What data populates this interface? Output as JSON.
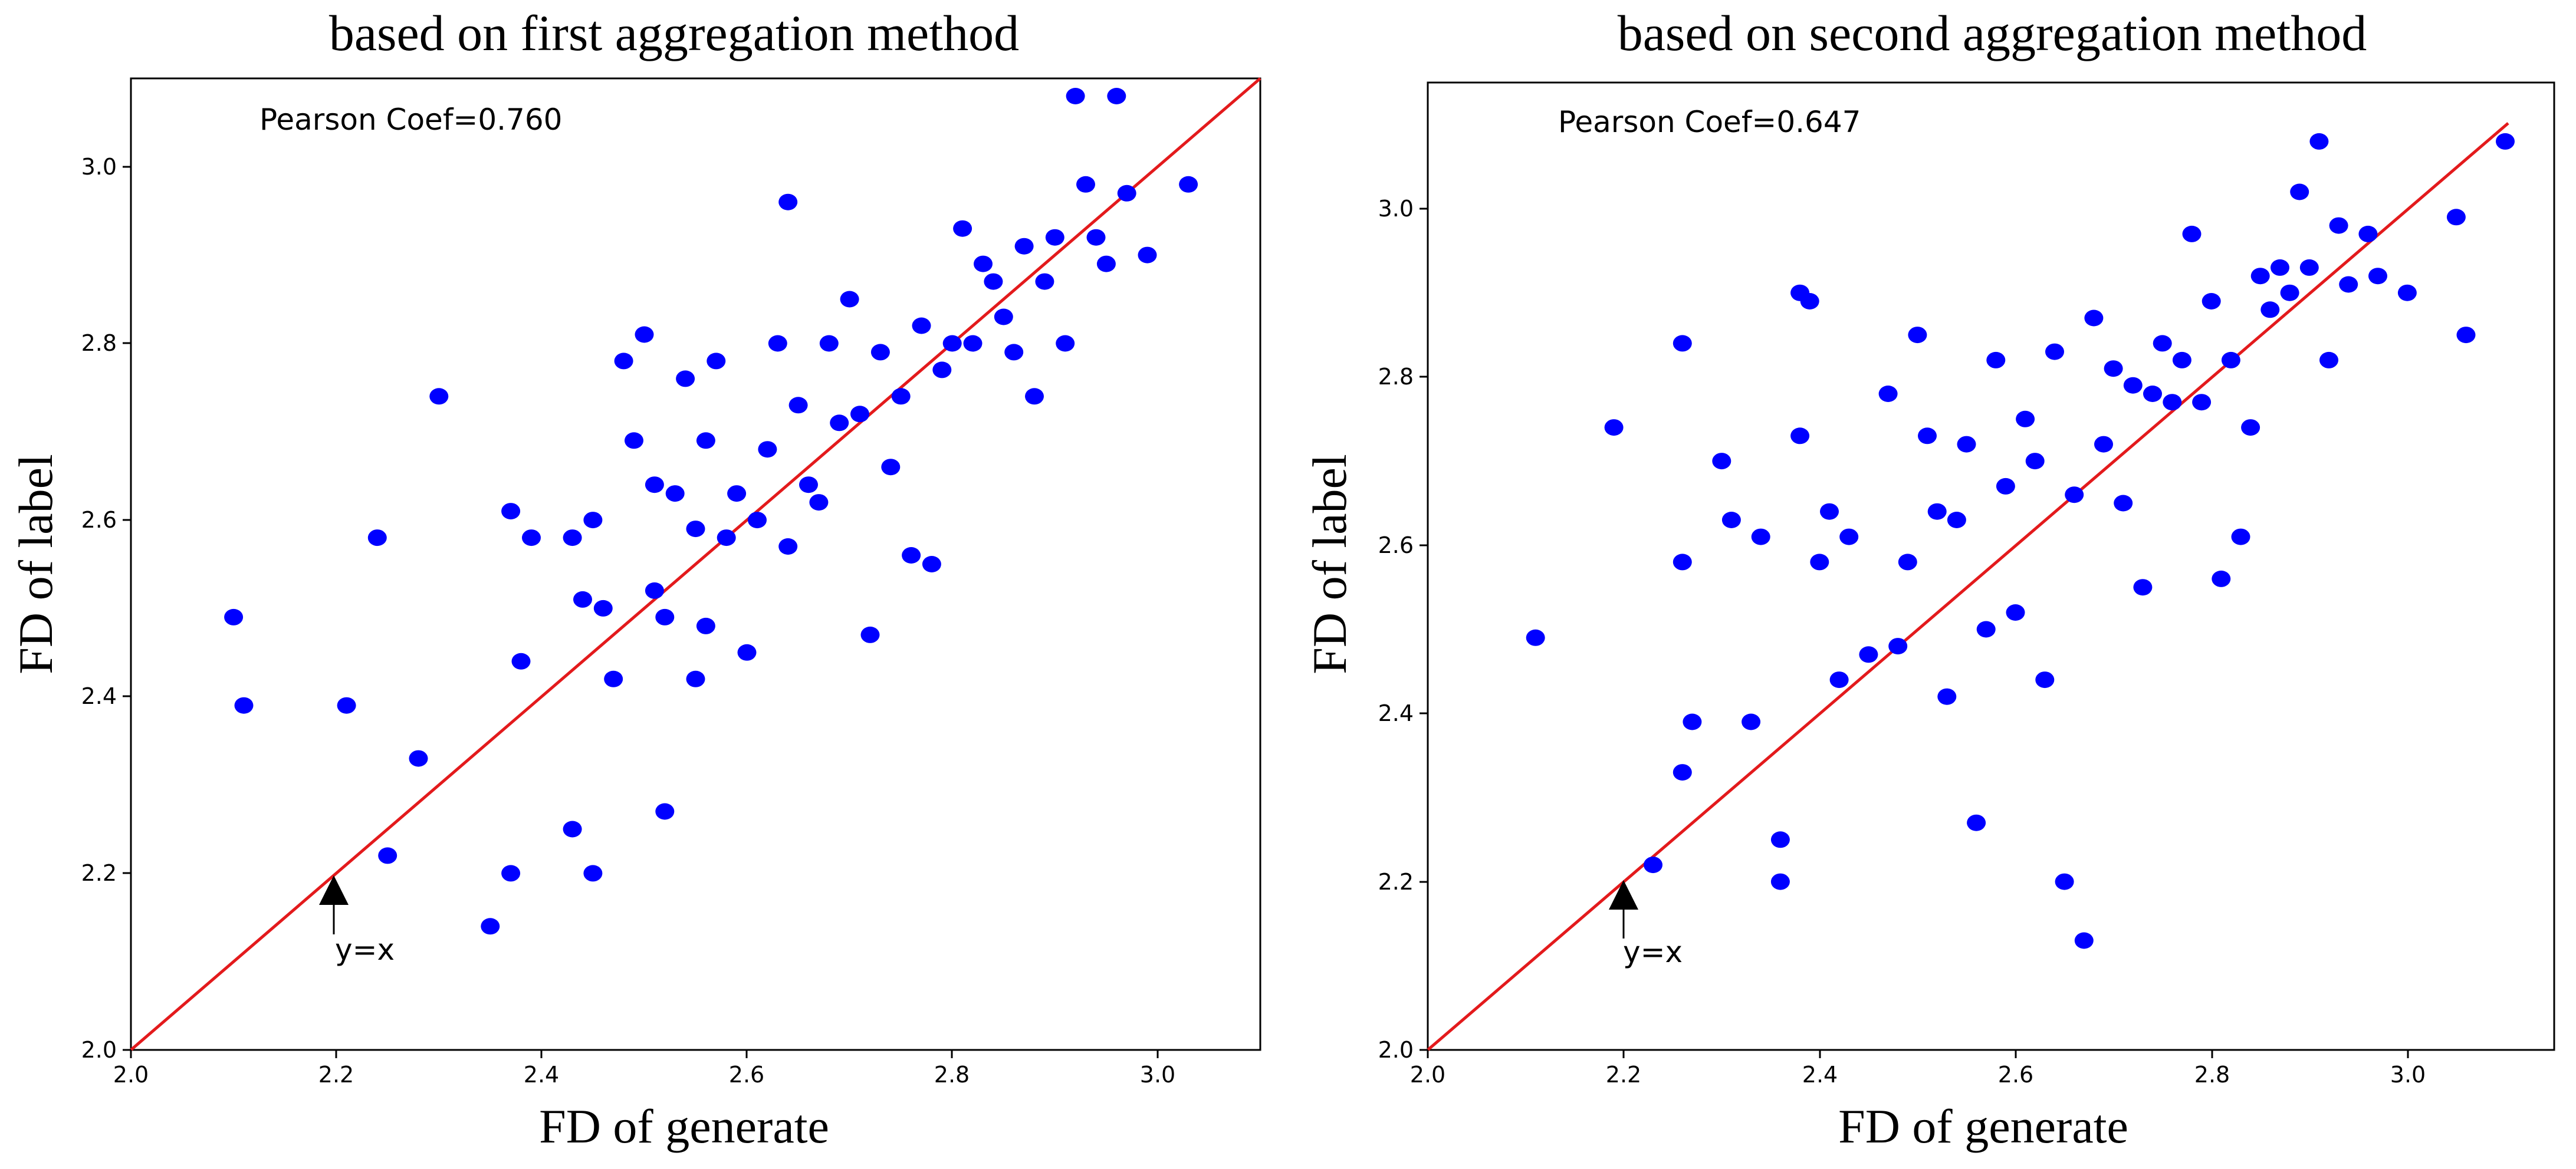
{
  "chart_data": [
    {
      "type": "scatter",
      "title": "based on first aggregation method",
      "xlabel": "FD of generate",
      "ylabel": "FD of label",
      "xlim": [
        2.0,
        3.1
      ],
      "ylim": [
        2.0,
        3.1
      ],
      "xticks": [
        "2.0",
        "2.2",
        "2.4",
        "2.6",
        "2.8",
        "3.0"
      ],
      "yticks": [
        "2.0",
        "2.2",
        "2.4",
        "2.6",
        "2.8",
        "3.0"
      ],
      "grid": false,
      "point_color": "#0000ff",
      "reference_line": {
        "label": "y=x",
        "color": "#e31a1c"
      },
      "annotation": "Pearson Coef=0.760",
      "arrow_label": "y=x",
      "arrow_point": [
        2.2,
        2.19
      ],
      "x": [
        2.1,
        2.11,
        2.21,
        2.24,
        2.25,
        2.28,
        2.3,
        2.35,
        2.37,
        2.37,
        2.38,
        2.39,
        2.43,
        2.43,
        2.44,
        2.45,
        2.45,
        2.46,
        2.47,
        2.48,
        2.49,
        2.5,
        2.51,
        2.51,
        2.52,
        2.52,
        2.53,
        2.54,
        2.55,
        2.55,
        2.56,
        2.56,
        2.57,
        2.58,
        2.59,
        2.6,
        2.61,
        2.62,
        2.63,
        2.64,
        2.64,
        2.65,
        2.66,
        2.67,
        2.68,
        2.69,
        2.7,
        2.71,
        2.72,
        2.73,
        2.74,
        2.75,
        2.76,
        2.77,
        2.78,
        2.79,
        2.8,
        2.81,
        2.82,
        2.83,
        2.84,
        2.85,
        2.86,
        2.87,
        2.88,
        2.89,
        2.9,
        2.91,
        2.92,
        2.93,
        2.94,
        2.95,
        2.96,
        2.97,
        2.99,
        3.03
      ],
      "y": [
        2.49,
        2.39,
        2.39,
        2.58,
        2.22,
        2.33,
        2.74,
        2.14,
        2.2,
        2.61,
        2.44,
        2.58,
        2.25,
        2.58,
        2.51,
        2.2,
        2.6,
        2.5,
        2.42,
        2.78,
        2.69,
        2.81,
        2.52,
        2.64,
        2.49,
        2.27,
        2.63,
        2.76,
        2.59,
        2.42,
        2.48,
        2.69,
        2.78,
        2.58,
        2.63,
        2.45,
        2.6,
        2.68,
        2.8,
        2.57,
        2.96,
        2.73,
        2.64,
        2.62,
        2.8,
        2.71,
        2.85,
        2.72,
        2.47,
        2.79,
        2.66,
        2.74,
        2.56,
        2.82,
        2.55,
        2.77,
        2.8,
        2.93,
        2.8,
        2.89,
        2.87,
        2.83,
        2.79,
        2.91,
        2.74,
        2.87,
        2.92,
        2.8,
        3.08,
        2.98,
        2.92,
        2.89,
        3.08,
        2.97,
        2.9,
        2.98
      ]
    },
    {
      "type": "scatter",
      "title": "based on second aggregation method",
      "xlabel": "FD of generate",
      "ylabel": "FD of label",
      "xlim": [
        2.0,
        3.15
      ],
      "ylim": [
        2.0,
        3.15
      ],
      "xticks": [
        "2.0",
        "2.2",
        "2.4",
        "2.6",
        "2.8",
        "3.0"
      ],
      "yticks": [
        "2.0",
        "2.2",
        "2.4",
        "2.6",
        "2.8",
        "3.0"
      ],
      "grid": false,
      "point_color": "#0000ff",
      "reference_line": {
        "label": "y=x",
        "color": "#e31a1c"
      },
      "annotation": "Pearson Coef=0.647",
      "arrow_label": "y=x",
      "arrow_point": [
        2.2,
        2.18
      ],
      "x": [
        2.11,
        2.19,
        2.23,
        2.26,
        2.26,
        2.26,
        2.27,
        2.3,
        2.31,
        2.33,
        2.34,
        2.36,
        2.36,
        2.38,
        2.38,
        2.39,
        2.4,
        2.41,
        2.42,
        2.43,
        2.45,
        2.47,
        2.48,
        2.49,
        2.5,
        2.51,
        2.52,
        2.53,
        2.54,
        2.55,
        2.56,
        2.57,
        2.58,
        2.59,
        2.6,
        2.61,
        2.62,
        2.63,
        2.64,
        2.65,
        2.66,
        2.67,
        2.68,
        2.69,
        2.7,
        2.71,
        2.72,
        2.73,
        2.74,
        2.75,
        2.76,
        2.77,
        2.78,
        2.79,
        2.8,
        2.81,
        2.82,
        2.83,
        2.84,
        2.85,
        2.86,
        2.87,
        2.88,
        2.89,
        2.9,
        2.91,
        2.92,
        2.93,
        2.94,
        2.96,
        2.97,
        3.0,
        3.05,
        3.06,
        3.1
      ],
      "y": [
        2.49,
        2.74,
        2.22,
        2.33,
        2.58,
        2.84,
        2.39,
        2.7,
        2.63,
        2.39,
        2.61,
        2.2,
        2.25,
        2.9,
        2.73,
        2.89,
        2.58,
        2.64,
        2.44,
        2.61,
        2.47,
        2.78,
        2.48,
        2.58,
        2.85,
        2.73,
        2.64,
        2.42,
        2.63,
        2.72,
        2.27,
        2.5,
        2.82,
        2.67,
        2.52,
        2.75,
        2.7,
        2.44,
        2.83,
        2.2,
        2.66,
        2.13,
        2.87,
        2.72,
        2.81,
        2.65,
        2.79,
        2.55,
        2.78,
        2.84,
        2.77,
        2.82,
        2.97,
        2.77,
        2.89,
        2.56,
        2.82,
        2.61,
        2.74,
        2.92,
        2.88,
        2.93,
        2.9,
        3.02,
        2.93,
        3.08,
        2.82,
        2.98,
        2.91,
        2.97,
        2.92,
        2.9,
        2.99,
        2.85,
        3.08
      ]
    }
  ]
}
